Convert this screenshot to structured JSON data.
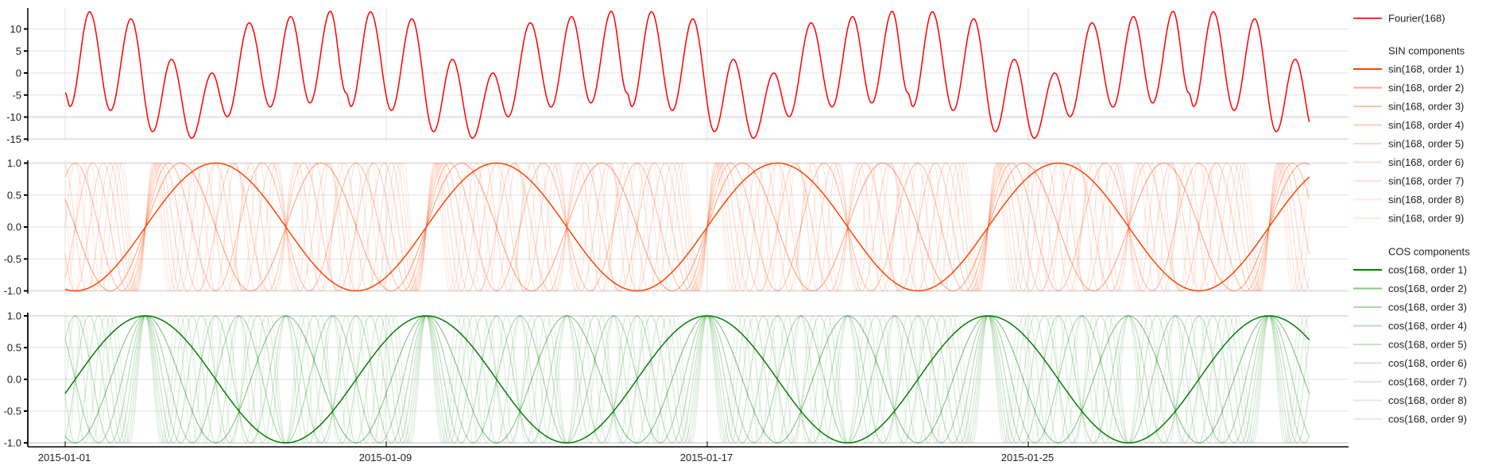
{
  "chart_data": [
    {
      "type": "line",
      "panel": "fourier",
      "title": "",
      "xlabel": "",
      "ylabel": "",
      "ylim": [
        -15.5,
        14.5
      ],
      "yticks": [
        10,
        5,
        0,
        -5,
        -10,
        -15
      ],
      "ytick_labels": [
        "10",
        "5",
        "0",
        "-5",
        "-10",
        "-15"
      ],
      "grid": true,
      "x_range_days": [
        0,
        31
      ],
      "series": [
        {
          "name": "Fourier(168)",
          "color": "#ff0000",
          "opacity": 1,
          "period_days": 7,
          "weekly_extrema": [
            {
              "t": 0.0,
              "v": -4.5
            },
            {
              "t": 0.12,
              "v": -7.6
            },
            {
              "t": 0.61,
              "v": 13.9
            },
            {
              "t": 1.13,
              "v": -8.5
            },
            {
              "t": 1.64,
              "v": 12.3
            },
            {
              "t": 2.18,
              "v": -13.3
            },
            {
              "t": 2.65,
              "v": 3.1
            },
            {
              "t": 3.15,
              "v": -14.8
            },
            {
              "t": 3.66,
              "v": 0.0
            },
            {
              "t": 4.04,
              "v": -9.9
            },
            {
              "t": 4.59,
              "v": 11.4
            },
            {
              "t": 5.11,
              "v": -7.7
            },
            {
              "t": 5.62,
              "v": 12.8
            },
            {
              "t": 6.1,
              "v": -6.8
            },
            {
              "t": 6.61,
              "v": 14.0
            },
            {
              "t": 7.0,
              "v": -4.5
            }
          ]
        }
      ]
    },
    {
      "type": "line",
      "panel": "sin",
      "title": "SIN components",
      "ylim": [
        -1.05,
        1.05
      ],
      "yticks": [
        1.0,
        0.5,
        0.0,
        -0.5,
        -1.0
      ],
      "ytick_labels": [
        "1.0",
        "0.5",
        "0.0",
        "-0.5",
        "-1.0"
      ],
      "grid": true,
      "function": "sin(2*pi*order*(t-2)/7), t in days since 2015-01-01",
      "phase_offset_days": 2,
      "period_days": 7,
      "series": [
        {
          "name": "sin(168, order 1)",
          "order": 1,
          "color": "#ff4500",
          "opacity": 1.0
        },
        {
          "name": "sin(168, order 2)",
          "order": 2,
          "color": "#ff4500",
          "opacity": 0.45
        },
        {
          "name": "sin(168, order 3)",
          "order": 3,
          "color": "#ff4500",
          "opacity": 0.32
        },
        {
          "name": "sin(168, order 4)",
          "order": 4,
          "color": "#ff4500",
          "opacity": 0.26
        },
        {
          "name": "sin(168, order 5)",
          "order": 5,
          "color": "#ff4500",
          "opacity": 0.21
        },
        {
          "name": "sin(168, order 6)",
          "order": 6,
          "color": "#ff4500",
          "opacity": 0.18
        },
        {
          "name": "sin(168, order 7)",
          "order": 7,
          "color": "#ff4500",
          "opacity": 0.15
        },
        {
          "name": "sin(168, order 8)",
          "order": 8,
          "color": "#ff4500",
          "opacity": 0.13
        },
        {
          "name": "sin(168, order 9)",
          "order": 9,
          "color": "#ff4500",
          "opacity": 0.11
        }
      ]
    },
    {
      "type": "line",
      "panel": "cos",
      "title": "COS components",
      "ylim": [
        -1.05,
        1.05
      ],
      "yticks": [
        1.0,
        0.5,
        0.0,
        -0.5,
        -1.0
      ],
      "ytick_labels": [
        "1.0",
        "0.5",
        "0.0",
        "-0.5",
        "-1.0"
      ],
      "grid": true,
      "function": "cos(2*pi*order*(t-2)/7), t in days since 2015-01-01",
      "phase_offset_days": 2,
      "period_days": 7,
      "series": [
        {
          "name": "cos(168, order 1)",
          "order": 1,
          "color": "#008000",
          "opacity": 1.0
        },
        {
          "name": "cos(168, order 2)",
          "order": 2,
          "color": "#008000",
          "opacity": 0.45
        },
        {
          "name": "cos(168, order 3)",
          "order": 3,
          "color": "#008000",
          "opacity": 0.32
        },
        {
          "name": "cos(168, order 4)",
          "order": 4,
          "color": "#008000",
          "opacity": 0.26
        },
        {
          "name": "cos(168, order 5)",
          "order": 5,
          "color": "#008000",
          "opacity": 0.21
        },
        {
          "name": "cos(168, order 6)",
          "order": 6,
          "color": "#008000",
          "opacity": 0.18
        },
        {
          "name": "cos(168, order 7)",
          "order": 7,
          "color": "#008000",
          "opacity": 0.15
        },
        {
          "name": "cos(168, order 8)",
          "order": 8,
          "color": "#008000",
          "opacity": 0.13
        },
        {
          "name": "cos(168, order 9)",
          "order": 9,
          "color": "#008000",
          "opacity": 0.11
        }
      ]
    }
  ],
  "x_axis": {
    "ticks": [
      {
        "label": "2015-01-01",
        "day": 0
      },
      {
        "label": "2015-01-09",
        "day": 8
      },
      {
        "label": "2015-01-17",
        "day": 16
      },
      {
        "label": "2015-01-25",
        "day": 24
      }
    ]
  },
  "legend": {
    "fourier": {
      "label": "Fourier(168)",
      "color": "#ff0000"
    },
    "sin_header": "SIN components",
    "cos_header": "COS components"
  }
}
